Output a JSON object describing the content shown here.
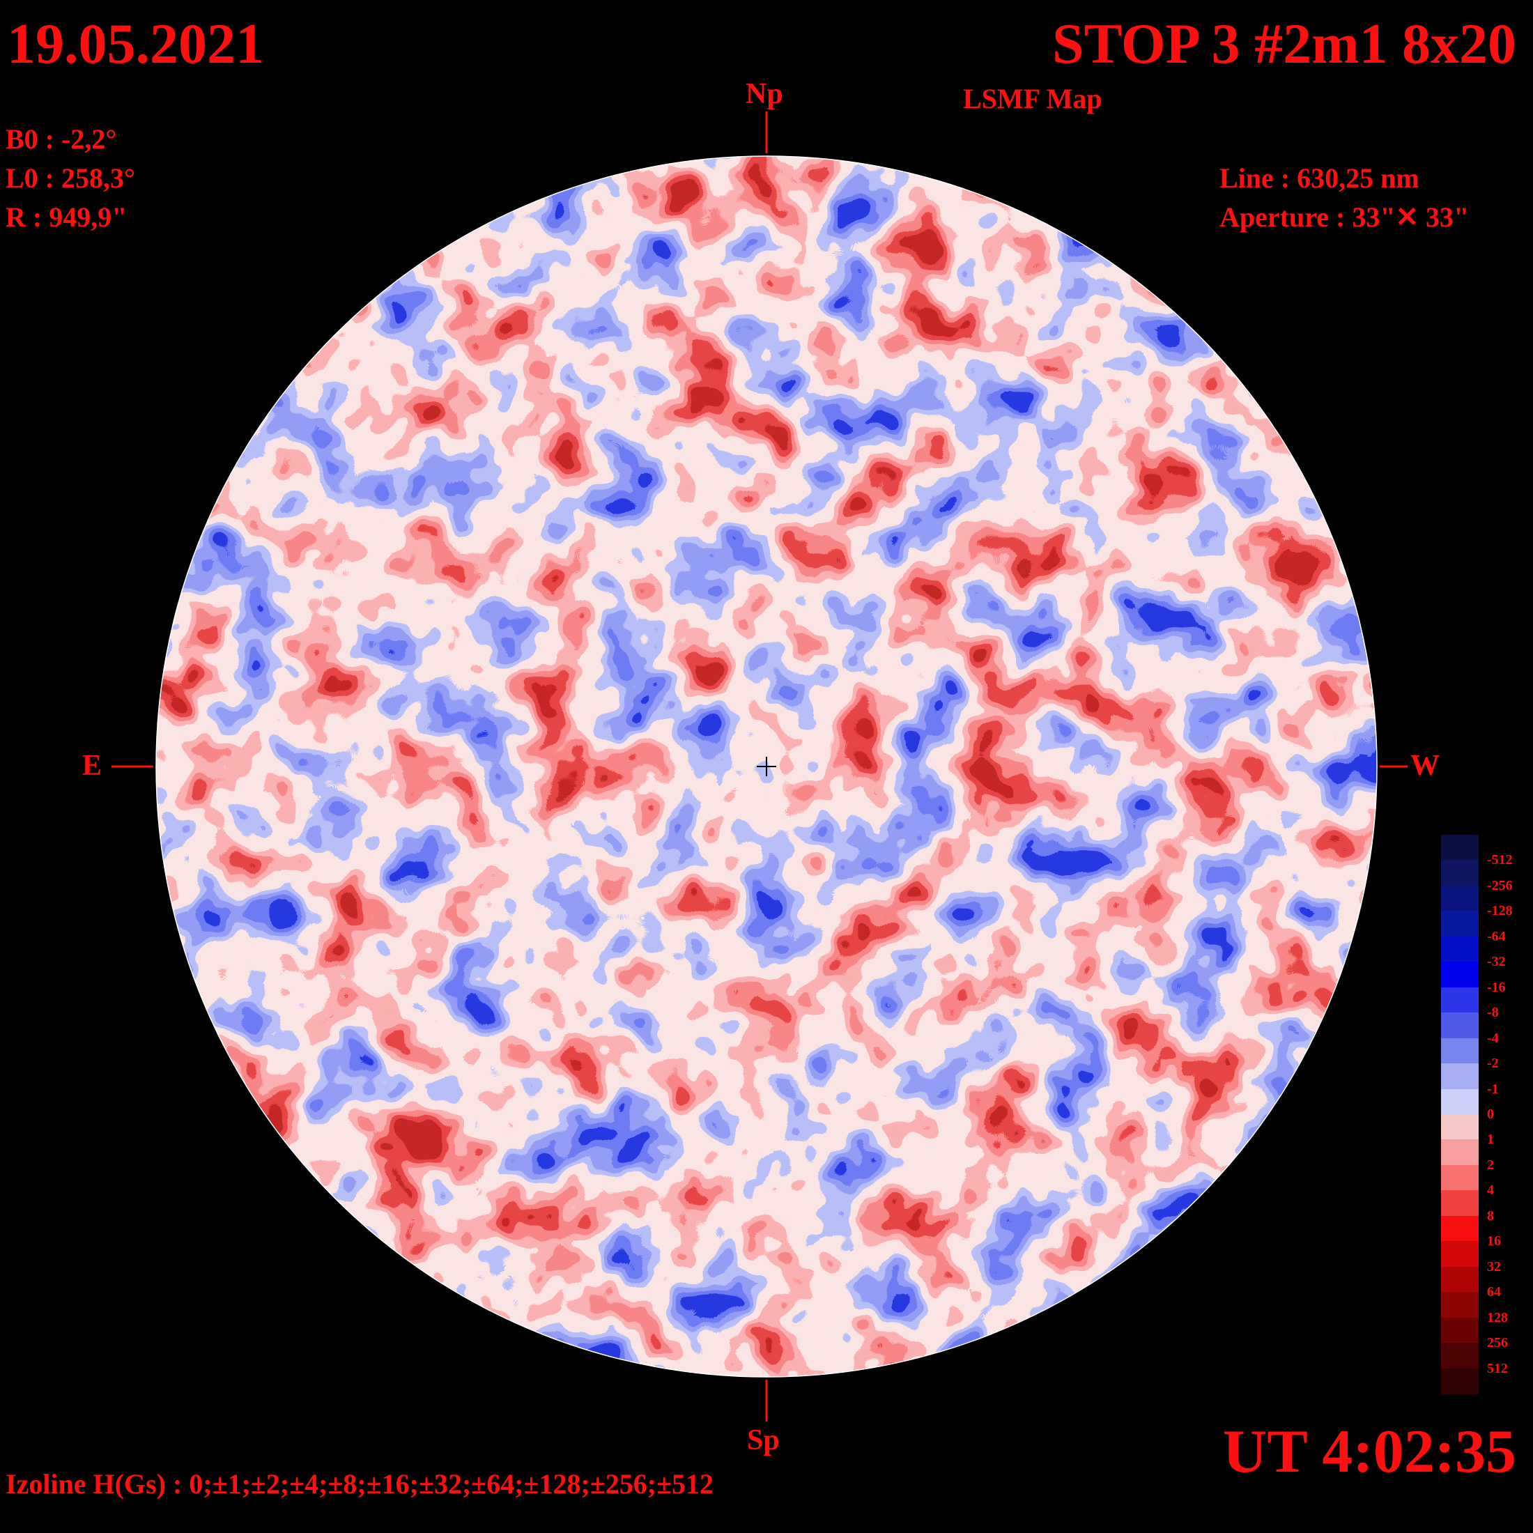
{
  "header": {
    "date": "19.05.2021",
    "title": "STOP 3 #2m1 8x20",
    "subtitle": "LSMF  Map"
  },
  "params": {
    "b0": "B0 : -2,2°",
    "l0": "L0 : 258,3°",
    "r": "R  : 949,9\"",
    "line": "Line :  630,25 nm",
    "aperture": "Aperture : 33\"✕ 33\""
  },
  "directions": {
    "north": "Np",
    "south": "Sp",
    "east": "E",
    "west": "W"
  },
  "time": "UT 4:02:35",
  "isoline_caption": "Izoline H(Gs) : 0;±1;±2;±4;±8;±16;±32;±64;±128;±256;±512",
  "colorbar": {
    "levels": [
      "-512",
      "-256",
      "-128",
      "-64",
      "-32",
      "-16",
      "-8",
      "-4",
      "-2",
      "-1",
      "0",
      "1",
      "2",
      "4",
      "8",
      "16",
      "32",
      "64",
      "128",
      "256",
      "512"
    ],
    "colors": [
      "#0c1040",
      "#0d1460",
      "#0a1480",
      "#0818a0",
      "#0410c8",
      "#0000f0",
      "#2a36e8",
      "#4e5ae8",
      "#7a84ee",
      "#a8aef4",
      "#ccd0f8",
      "#f8c8c8",
      "#f8a0a0",
      "#f87070",
      "#f04040",
      "#f81010",
      "#d40808",
      "#b00404",
      "#8a0404",
      "#6a0202",
      "#4a0202",
      "#300202"
    ]
  },
  "colors": {
    "text": "#ff1010",
    "background": "#000000"
  }
}
